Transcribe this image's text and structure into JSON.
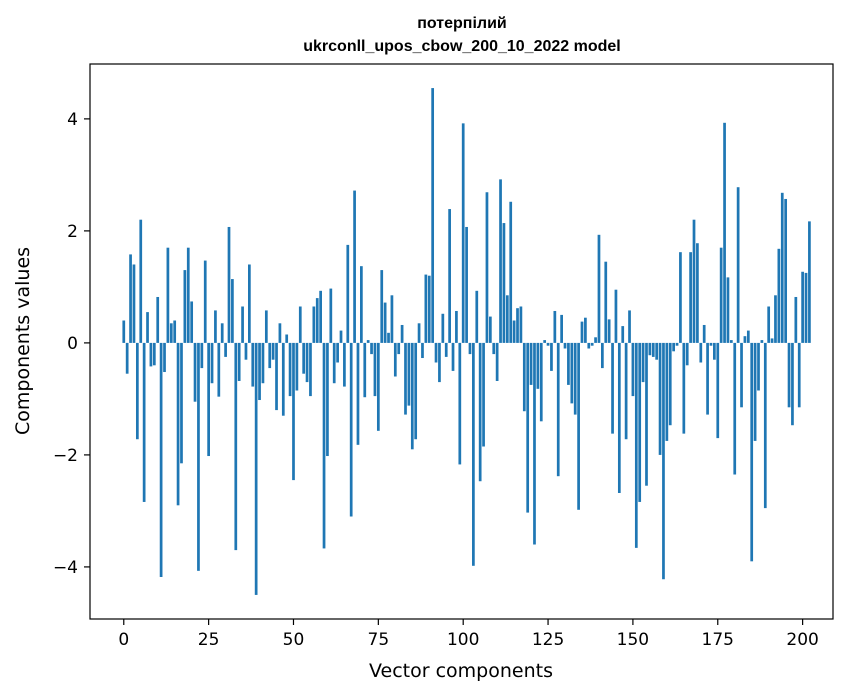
{
  "chart_data": {
    "type": "bar",
    "title_line1": "потерпілий",
    "title_line2": "ukrconll_upos_cbow_200_10_2022 model",
    "xlabel": "Vector components",
    "ylabel": "Components values",
    "xlim": [
      -9.95,
      208.95
    ],
    "ylim": [
      -4.93,
      4.98
    ],
    "xticks": [
      0,
      25,
      50,
      75,
      100,
      125,
      150,
      175,
      200
    ],
    "yticks": [
      -4,
      -2,
      0,
      2,
      4
    ],
    "ytick_labels": [
      "−4",
      "−2",
      "0",
      "2",
      "4"
    ],
    "bar_color": "#1f77b4",
    "values": [
      0.4,
      -0.55,
      1.58,
      1.4,
      -1.72,
      2.2,
      -2.84,
      0.55,
      -0.42,
      -0.4,
      0.82,
      -4.18,
      -0.52,
      1.7,
      0.35,
      0.4,
      -2.9,
      -2.15,
      1.3,
      1.7,
      0.74,
      -1.05,
      -4.07,
      -0.45,
      1.47,
      -2.02,
      -0.72,
      0.58,
      -0.96,
      0.35,
      -0.25,
      2.07,
      1.14,
      -3.7,
      -0.68,
      0.65,
      -0.3,
      1.4,
      -0.78,
      -4.5,
      -1.02,
      -0.72,
      0.58,
      -0.45,
      -0.3,
      -1.2,
      0.35,
      -1.3,
      0.15,
      -0.95,
      -2.45,
      -0.85,
      0.65,
      -0.55,
      -0.7,
      -0.95,
      0.65,
      0.8,
      0.93,
      -3.67,
      -2.02,
      0.97,
      -0.72,
      -0.35,
      0.22,
      -0.78,
      1.75,
      -3.1,
      2.72,
      -1.82,
      1.37,
      -0.97,
      0.05,
      -0.2,
      -0.95,
      -1.57,
      1.3,
      0.72,
      0.18,
      0.85,
      -0.6,
      -0.2,
      0.32,
      -1.28,
      -1.12,
      -1.9,
      -1.72,
      0.35,
      -0.27,
      1.22,
      1.2,
      4.55,
      -0.35,
      -0.7,
      0.52,
      -0.25,
      2.39,
      -0.5,
      0.57,
      -2.17,
      3.92,
      2.07,
      -0.2,
      -3.98,
      0.93,
      -2.47,
      -1.85,
      2.69,
      0.47,
      -0.2,
      -0.68,
      2.92,
      2.14,
      0.85,
      2.52,
      0.4,
      0.62,
      0.65,
      -1.22,
      -3.03,
      -0.75,
      -3.6,
      -0.82,
      -1.4,
      0.05,
      -0.05,
      -0.5,
      0.57,
      -2.38,
      0.5,
      -0.1,
      -0.75,
      -1.08,
      -1.28,
      -2.98,
      0.38,
      0.45,
      -0.1,
      -0.05,
      0.1,
      1.93,
      -0.45,
      1.45,
      0.42,
      -1.62,
      0.95,
      -2.68,
      0.3,
      -1.72,
      0.58,
      -0.95,
      -3.66,
      -2.84,
      -0.7,
      -2.55,
      -0.22,
      -0.25,
      -0.3,
      -2.0,
      -4.22,
      -1.75,
      -1.47,
      -0.15,
      -0.05,
      1.62,
      -1.62,
      -0.4,
      1.62,
      2.2,
      1.78,
      -0.35,
      0.32,
      -1.28,
      -0.05,
      -0.3,
      -1.7,
      1.7,
      3.93,
      1.17,
      0.05,
      -2.35,
      2.78,
      -1.15,
      0.12,
      0.22,
      -3.9,
      -1.75,
      -0.85,
      0.05,
      -2.95,
      0.65,
      0.08,
      0.85,
      1.68,
      2.68,
      2.57,
      -1.15,
      -1.47,
      0.82,
      -1.15,
      1.27,
      1.25,
      2.17
    ]
  }
}
